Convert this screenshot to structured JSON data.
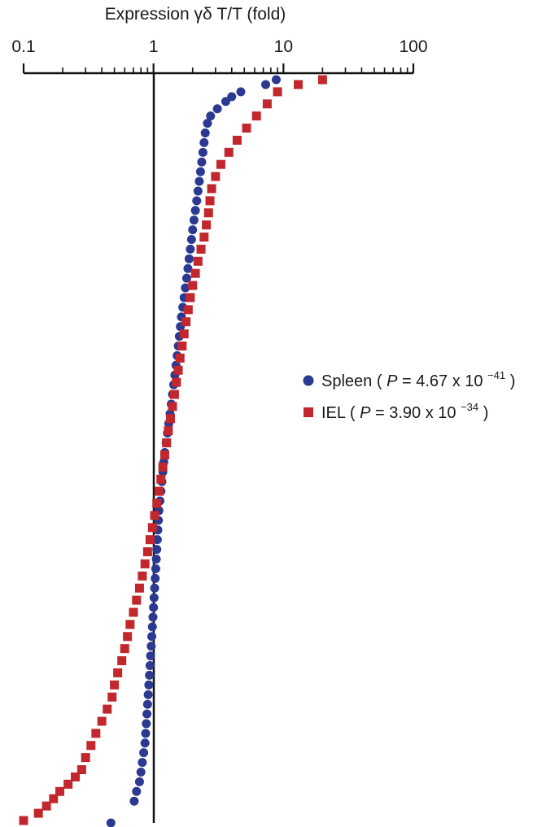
{
  "chart_data": {
    "type": "scatter",
    "xlabel": "Expression γδ T/T (fold)",
    "xscale": "log",
    "xlim": [
      0.1,
      100
    ],
    "x_ticks": [
      "0.1",
      "1",
      "10",
      "100"
    ],
    "x_axis_position": "top",
    "reference_line_x": 1,
    "y_axis": "rank order (unlabeled)",
    "legend_position": "right",
    "series": [
      {
        "name": "Spleen",
        "stat_label": "P = 4.67 x 10",
        "stat_label_prefix": "P",
        "stat_label_rest": " = 4.67 x 10",
        "stat_exponent": "−41",
        "marker": "circle",
        "color": "#2b3990",
        "x": [
          0.47,
          0.71,
          0.74,
          0.78,
          0.8,
          0.82,
          0.84,
          0.86,
          0.87,
          0.88,
          0.89,
          0.9,
          0.91,
          0.92,
          0.93,
          0.94,
          0.95,
          0.96,
          0.97,
          0.98,
          0.99,
          1.0,
          1.01,
          1.02,
          1.03,
          1.04,
          1.05,
          1.06,
          1.07,
          1.08,
          1.09,
          1.1,
          1.12,
          1.14,
          1.16,
          1.18,
          1.2,
          1.22,
          1.25,
          1.28,
          1.31,
          1.34,
          1.37,
          1.4,
          1.43,
          1.46,
          1.49,
          1.52,
          1.55,
          1.58,
          1.61,
          1.64,
          1.68,
          1.72,
          1.76,
          1.8,
          1.84,
          1.88,
          1.92,
          1.96,
          2.0,
          2.05,
          2.1,
          2.15,
          2.2,
          2.25,
          2.3,
          2.35,
          2.4,
          2.45,
          2.5,
          2.6,
          2.75,
          3.1,
          3.6,
          4.0,
          4.7,
          7.3,
          8.8
        ],
        "y": [
          1,
          10,
          14,
          18,
          22,
          26,
          30,
          34,
          38,
          42,
          46,
          50,
          54,
          58,
          62,
          66,
          70,
          74,
          78,
          82,
          86,
          90,
          94,
          98,
          102,
          106,
          110,
          114,
          118,
          122,
          126,
          130,
          134,
          138,
          142,
          146,
          150,
          154,
          158,
          162,
          166,
          170,
          174,
          178,
          182,
          186,
          190,
          194,
          198,
          202,
          206,
          210,
          214,
          218,
          222,
          226,
          230,
          234,
          238,
          242,
          246,
          250,
          254,
          258,
          262,
          266,
          270,
          274,
          278,
          282,
          286,
          290,
          293,
          296,
          299,
          301,
          303,
          306,
          308
        ]
      },
      {
        "name": "IEL",
        "stat_label": "P = 3.90 x 10",
        "stat_label_prefix": "P",
        "stat_label_rest": " = 3.90 x 10",
        "stat_exponent": "−34",
        "marker": "square",
        "color": "#c1272d",
        "x": [
          0.1,
          0.13,
          0.15,
          0.17,
          0.19,
          0.22,
          0.25,
          0.28,
          0.3,
          0.33,
          0.36,
          0.4,
          0.44,
          0.48,
          0.5,
          0.53,
          0.57,
          0.6,
          0.63,
          0.66,
          0.7,
          0.74,
          0.78,
          0.82,
          0.86,
          0.9,
          0.94,
          0.98,
          1.02,
          1.06,
          1.1,
          1.14,
          1.18,
          1.22,
          1.26,
          1.3,
          1.35,
          1.4,
          1.45,
          1.5,
          1.55,
          1.6,
          1.66,
          1.72,
          1.78,
          1.85,
          1.92,
          2.0,
          2.1,
          2.2,
          2.32,
          2.45,
          2.55,
          2.65,
          2.72,
          2.8,
          3.0,
          3.3,
          3.8,
          4.4,
          5.2,
          6.2,
          7.5,
          9.0,
          13.0,
          20.0
        ],
        "y": [
          2,
          5,
          8,
          11,
          14,
          17,
          20,
          23,
          28,
          33,
          38,
          43,
          48,
          53,
          58,
          63,
          68,
          73,
          78,
          83,
          88,
          93,
          98,
          103,
          108,
          113,
          118,
          123,
          128,
          133,
          138,
          143,
          148,
          153,
          158,
          163,
          168,
          173,
          178,
          183,
          188,
          193,
          198,
          203,
          208,
          213,
          218,
          223,
          228,
          233,
          238,
          243,
          248,
          253,
          258,
          263,
          268,
          273,
          278,
          283,
          288,
          293,
          298,
          303,
          306,
          308
        ]
      }
    ]
  }
}
